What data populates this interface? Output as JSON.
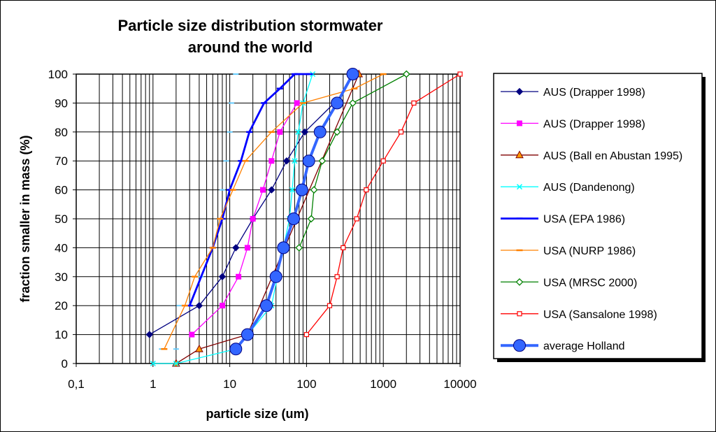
{
  "chart_data": {
    "type": "line",
    "title_lines": [
      "Particle size distribution stormwater",
      "around the world"
    ],
    "xlabel": "particle size (um)",
    "ylabel": "fraction smaller in mass (%)",
    "x_scale": "log",
    "xlim": [
      0.1,
      10000
    ],
    "ylim": [
      0,
      100
    ],
    "x_ticks": [
      0.1,
      1,
      10,
      100,
      1000,
      10000
    ],
    "x_tick_labels": [
      "0,1",
      "1",
      "10",
      "100",
      "1000",
      "10000"
    ],
    "y_ticks": [
      0,
      10,
      20,
      30,
      40,
      50,
      60,
      70,
      80,
      90,
      100
    ],
    "y_tick_labels": [
      "0",
      "10",
      "20",
      "30",
      "40",
      "50",
      "60",
      "70",
      "80",
      "90",
      "100"
    ],
    "grid": "vertical log gridlines, horizontal at every 10",
    "legend_position": "right",
    "series": [
      {
        "name": "AUS (Drapper 1998)",
        "color": "#000080",
        "marker": "diamond",
        "x": [
          0.9,
          4,
          8,
          12,
          20,
          35,
          55,
          95,
          230
        ],
        "y": [
          10,
          20,
          30,
          40,
          50,
          60,
          70,
          80,
          90
        ]
      },
      {
        "name": "AUS (Drapper 1998)",
        "color": "#FF00FF",
        "marker": "square",
        "x": [
          3.2,
          8,
          13,
          17,
          20,
          27,
          35,
          45,
          75
        ],
        "y": [
          10,
          20,
          30,
          40,
          50,
          60,
          70,
          80,
          90
        ]
      },
      {
        "name": "AUS (Ball en Abustan 1995)",
        "color": "#800000",
        "marker": "triangle",
        "x": [
          2,
          4,
          17,
          480
        ],
        "y": [
          0,
          5,
          10,
          100
        ]
      },
      {
        "name": "AUS (Dandenong)",
        "color": "#00FFFF",
        "marker": "x",
        "x": [
          1,
          2,
          12,
          35,
          50,
          60,
          65,
          70,
          78,
          90,
          120
        ],
        "y": [
          0,
          0,
          5,
          20,
          40,
          50,
          60,
          70,
          80,
          90,
          100
        ]
      },
      {
        "name": "USA (EPA 1986)",
        "color": "#0000FF",
        "marker": "dash",
        "x": [
          3,
          6,
          8,
          10,
          14,
          18,
          28,
          45,
          70,
          110
        ],
        "y": [
          20,
          40,
          50,
          60,
          70,
          80,
          90,
          95,
          100,
          100
        ]
      },
      {
        "name": "USA (NURP 1986)",
        "color": "#FF8000",
        "marker": "dash",
        "x": [
          1.4,
          2.6,
          3.5,
          6,
          7.5,
          11,
          16,
          35,
          90,
          420,
          1000
        ],
        "y": [
          5,
          20,
          30,
          40,
          50,
          60,
          70,
          80,
          90,
          95,
          100
        ]
      },
      {
        "name": "USA (MRSC 2000)",
        "color": "#008000",
        "marker": "diamond-open",
        "x": [
          80,
          115,
          125,
          160,
          250,
          400,
          2000
        ],
        "y": [
          40,
          50,
          60,
          70,
          80,
          90,
          100
        ]
      },
      {
        "name": "USA (Sansalone 1998)",
        "color": "#FF0000",
        "marker": "square-open",
        "x": [
          100,
          200,
          250,
          300,
          450,
          600,
          1000,
          1700,
          2500,
          10000
        ],
        "y": [
          10,
          20,
          30,
          40,
          50,
          60,
          70,
          80,
          90,
          100
        ]
      },
      {
        "name": "average Holland",
        "color": "#3366FF",
        "marker": "circle",
        "x": [
          12,
          17,
          30,
          40,
          50,
          68,
          87,
          107,
          150,
          250,
          400
        ],
        "y": [
          5,
          10,
          20,
          30,
          40,
          50,
          60,
          70,
          80,
          90,
          100
        ]
      }
    ],
    "faint_dash_markers": {
      "color": "#66CCFF",
      "x": [
        1.3,
        2,
        2.2,
        3,
        4.2,
        6,
        8,
        9,
        10,
        10.5,
        12
      ],
      "y": [
        5,
        5,
        20,
        20,
        30,
        40,
        60,
        70,
        80,
        90,
        100
      ]
    }
  }
}
